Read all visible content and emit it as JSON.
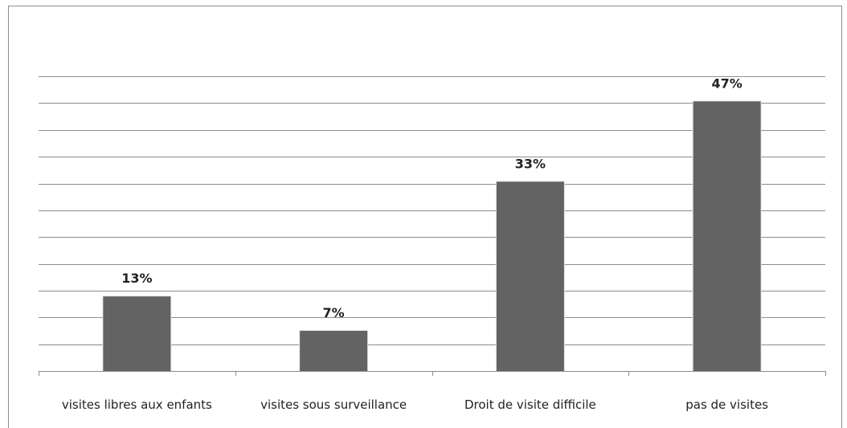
{
  "chart_data": {
    "type": "bar",
    "categories": [
      "visites libres aux enfants",
      "visites sous surveillance",
      "Droit de visite difficile",
      "pas de visites"
    ],
    "values": [
      13,
      7,
      33,
      47
    ],
    "data_labels": [
      "13%",
      "7%",
      "33%",
      "47%"
    ],
    "ylim": [
      0,
      56
    ],
    "y_gridline_step": 4.67,
    "grid": true,
    "legend": "none",
    "bar_color": "#636363",
    "gridline_color": "#8c8c8c"
  }
}
